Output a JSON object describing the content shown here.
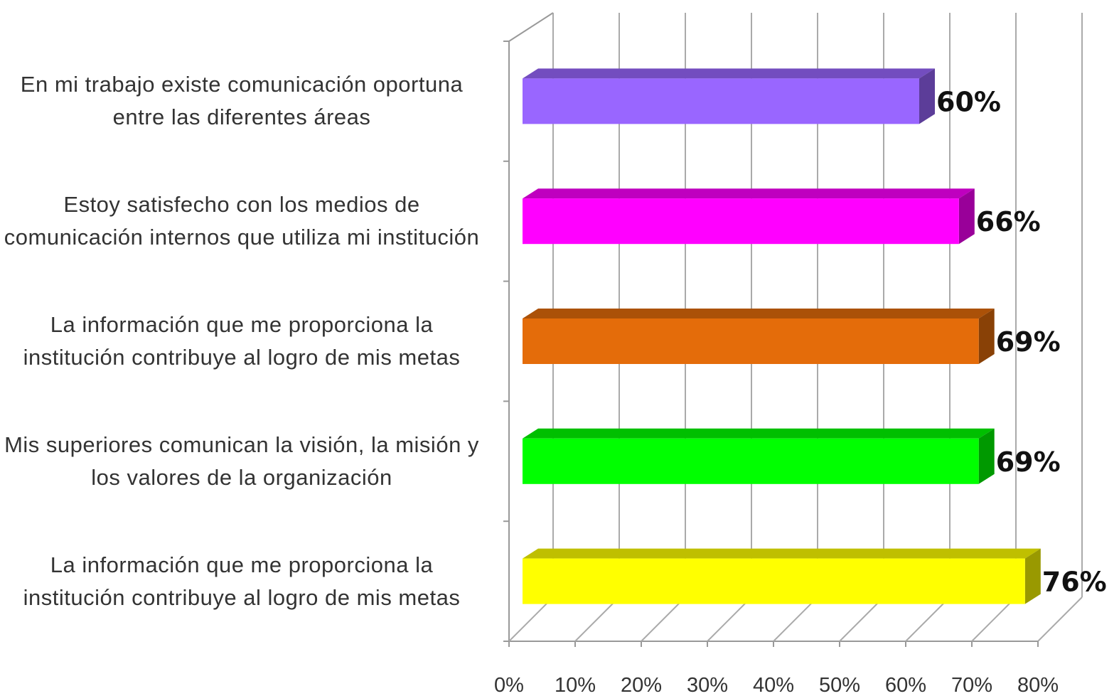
{
  "chart_data": {
    "type": "bar3d_horizontal",
    "categories": [
      "En mi trabajo existe comunicación oportuna entre las diferentes áreas",
      "Estoy satisfecho con los medios de comunicación internos que utiliza mi institución",
      "La información que me proporciona la institución contribuye al logro de mis metas",
      "Mis superiores comunican la visión, la misión y los valores de la organización",
      "La información que me proporciona la institución contribuye al logro de mis metas"
    ],
    "values": [
      60,
      66,
      69,
      69,
      76
    ],
    "value_labels": [
      "60%",
      "66%",
      "69%",
      "69%",
      "76%"
    ],
    "colors": [
      "#9966ff",
      "#ff00ff",
      "#e46c0a",
      "#00ff00",
      "#ffff00"
    ],
    "xlim": [
      0,
      80
    ],
    "xticks": [
      {
        "value": 0,
        "label": "0%"
      },
      {
        "value": 10,
        "label": "10%"
      },
      {
        "value": 20,
        "label": "20%"
      },
      {
        "value": 30,
        "label": "30%"
      },
      {
        "value": 40,
        "label": "40%"
      },
      {
        "value": 50,
        "label": "50%"
      },
      {
        "value": 60,
        "label": "60%"
      },
      {
        "value": 70,
        "label": "70%"
      },
      {
        "value": 80,
        "label": "80%"
      }
    ],
    "grid": true
  }
}
